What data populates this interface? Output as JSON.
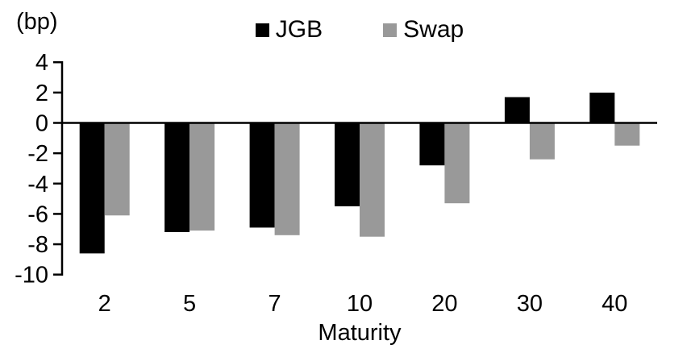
{
  "chart_data": {
    "type": "bar",
    "title": "",
    "unit_label": "(bp)",
    "xlabel": "Maturity",
    "categories": [
      "2",
      "5",
      "7",
      "10",
      "20",
      "30",
      "40"
    ],
    "series": [
      {
        "name": "JGB",
        "color": "#000000",
        "values": [
          -8.6,
          -7.2,
          -6.9,
          -5.5,
          -2.8,
          1.7,
          2.0
        ]
      },
      {
        "name": "Swap",
        "color": "#999999",
        "values": [
          -6.1,
          -7.1,
          -7.4,
          -7.5,
          -5.3,
          -2.4,
          -1.5
        ]
      }
    ],
    "ylim": [
      -10,
      4
    ],
    "yticks": [
      4,
      2,
      0,
      -2,
      -4,
      -6,
      -8,
      -10
    ],
    "ytick_step": 2,
    "grid": false,
    "legend_position": "top",
    "axis_color": "#000000",
    "background_color": "#ffffff"
  }
}
